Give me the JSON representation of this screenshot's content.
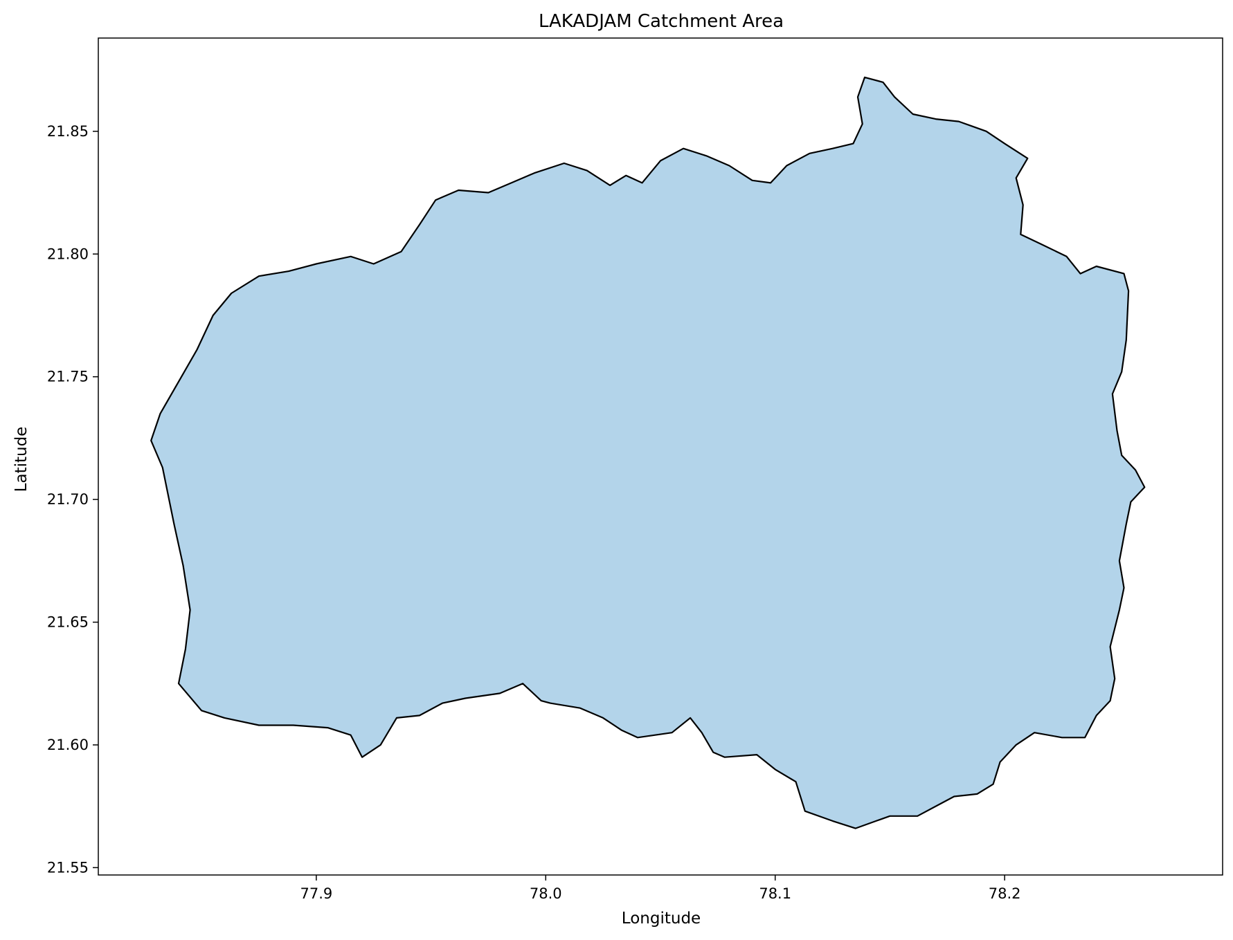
{
  "chart_data": {
    "type": "map",
    "title": "LAKADJAM Catchment Area",
    "xlabel": "Longitude",
    "ylabel": "Latitude",
    "xlim": [
      77.805,
      78.295
    ],
    "ylim": [
      21.547,
      21.888
    ],
    "x_ticks": [
      77.9,
      78.0,
      78.1,
      78.2
    ],
    "x_tick_labels": [
      "77.9",
      "78.0",
      "78.1",
      "78.2"
    ],
    "y_ticks": [
      21.55,
      21.6,
      21.65,
      21.7,
      21.75,
      21.8,
      21.85
    ],
    "y_tick_labels": [
      "21.55",
      "21.60",
      "21.65",
      "21.70",
      "21.75",
      "21.80",
      "21.85"
    ],
    "grid": false,
    "fill_color": "#b3d4ea",
    "edge_color": "#000000",
    "boundary": {
      "name": "catchment-boundary",
      "points": [
        [
          78.139,
          21.872
        ],
        [
          78.147,
          21.87
        ],
        [
          78.152,
          21.864
        ],
        [
          78.16,
          21.857
        ],
        [
          78.17,
          21.855
        ],
        [
          78.18,
          21.854
        ],
        [
          78.192,
          21.85
        ],
        [
          78.2,
          21.845
        ],
        [
          78.21,
          21.839
        ],
        [
          78.205,
          21.831
        ],
        [
          78.208,
          21.82
        ],
        [
          78.207,
          21.808
        ],
        [
          78.216,
          21.804
        ],
        [
          78.227,
          21.799
        ],
        [
          78.233,
          21.792
        ],
        [
          78.24,
          21.795
        ],
        [
          78.252,
          21.792
        ],
        [
          78.254,
          21.785
        ],
        [
          78.253,
          21.765
        ],
        [
          78.251,
          21.752
        ],
        [
          78.247,
          21.743
        ],
        [
          78.249,
          21.728
        ],
        [
          78.251,
          21.718
        ],
        [
          78.257,
          21.712
        ],
        [
          78.261,
          21.705
        ],
        [
          78.255,
          21.699
        ],
        [
          78.253,
          21.69
        ],
        [
          78.25,
          21.675
        ],
        [
          78.252,
          21.664
        ],
        [
          78.25,
          21.655
        ],
        [
          78.246,
          21.64
        ],
        [
          78.248,
          21.627
        ],
        [
          78.246,
          21.618
        ],
        [
          78.24,
          21.612
        ],
        [
          78.235,
          21.603
        ],
        [
          78.225,
          21.603
        ],
        [
          78.213,
          21.605
        ],
        [
          78.205,
          21.6
        ],
        [
          78.198,
          21.593
        ],
        [
          78.195,
          21.584
        ],
        [
          78.188,
          21.58
        ],
        [
          78.178,
          21.579
        ],
        [
          78.17,
          21.575
        ],
        [
          78.162,
          21.571
        ],
        [
          78.15,
          21.571
        ],
        [
          78.144,
          21.569
        ],
        [
          78.135,
          21.566
        ],
        [
          78.125,
          21.569
        ],
        [
          78.113,
          21.573
        ],
        [
          78.109,
          21.585
        ],
        [
          78.1,
          21.59
        ],
        [
          78.092,
          21.596
        ],
        [
          78.078,
          21.595
        ],
        [
          78.073,
          21.597
        ],
        [
          78.068,
          21.605
        ],
        [
          78.063,
          21.611
        ],
        [
          78.055,
          21.605
        ],
        [
          78.04,
          21.603
        ],
        [
          78.033,
          21.606
        ],
        [
          78.025,
          21.611
        ],
        [
          78.015,
          21.615
        ],
        [
          78.002,
          21.617
        ],
        [
          77.998,
          21.618
        ],
        [
          77.99,
          21.625
        ],
        [
          77.98,
          21.621
        ],
        [
          77.965,
          21.619
        ],
        [
          77.955,
          21.617
        ],
        [
          77.945,
          21.612
        ],
        [
          77.935,
          21.611
        ],
        [
          77.928,
          21.6
        ],
        [
          77.92,
          21.595
        ],
        [
          77.915,
          21.604
        ],
        [
          77.905,
          21.607
        ],
        [
          77.89,
          21.608
        ],
        [
          77.875,
          21.608
        ],
        [
          77.86,
          21.611
        ],
        [
          77.85,
          21.614
        ],
        [
          77.84,
          21.625
        ],
        [
          77.843,
          21.639
        ],
        [
          77.845,
          21.655
        ],
        [
          77.842,
          21.673
        ],
        [
          77.838,
          21.69
        ],
        [
          77.833,
          21.713
        ],
        [
          77.828,
          21.724
        ],
        [
          77.832,
          21.735
        ],
        [
          77.84,
          21.748
        ],
        [
          77.848,
          21.761
        ],
        [
          77.855,
          21.775
        ],
        [
          77.863,
          21.784
        ],
        [
          77.875,
          21.791
        ],
        [
          77.888,
          21.793
        ],
        [
          77.9,
          21.796
        ],
        [
          77.915,
          21.799
        ],
        [
          77.925,
          21.796
        ],
        [
          77.937,
          21.801
        ],
        [
          77.945,
          21.812
        ],
        [
          77.952,
          21.822
        ],
        [
          77.962,
          21.826
        ],
        [
          77.975,
          21.825
        ],
        [
          77.985,
          21.829
        ],
        [
          77.995,
          21.833
        ],
        [
          78.008,
          21.837
        ],
        [
          78.018,
          21.834
        ],
        [
          78.028,
          21.828
        ],
        [
          78.035,
          21.832
        ],
        [
          78.042,
          21.829
        ],
        [
          78.05,
          21.838
        ],
        [
          78.06,
          21.843
        ],
        [
          78.07,
          21.84
        ],
        [
          78.08,
          21.836
        ],
        [
          78.09,
          21.83
        ],
        [
          78.098,
          21.829
        ],
        [
          78.105,
          21.836
        ],
        [
          78.115,
          21.841
        ],
        [
          78.125,
          21.843
        ],
        [
          78.134,
          21.845
        ],
        [
          78.138,
          21.853
        ],
        [
          78.136,
          21.864
        ]
      ]
    }
  }
}
